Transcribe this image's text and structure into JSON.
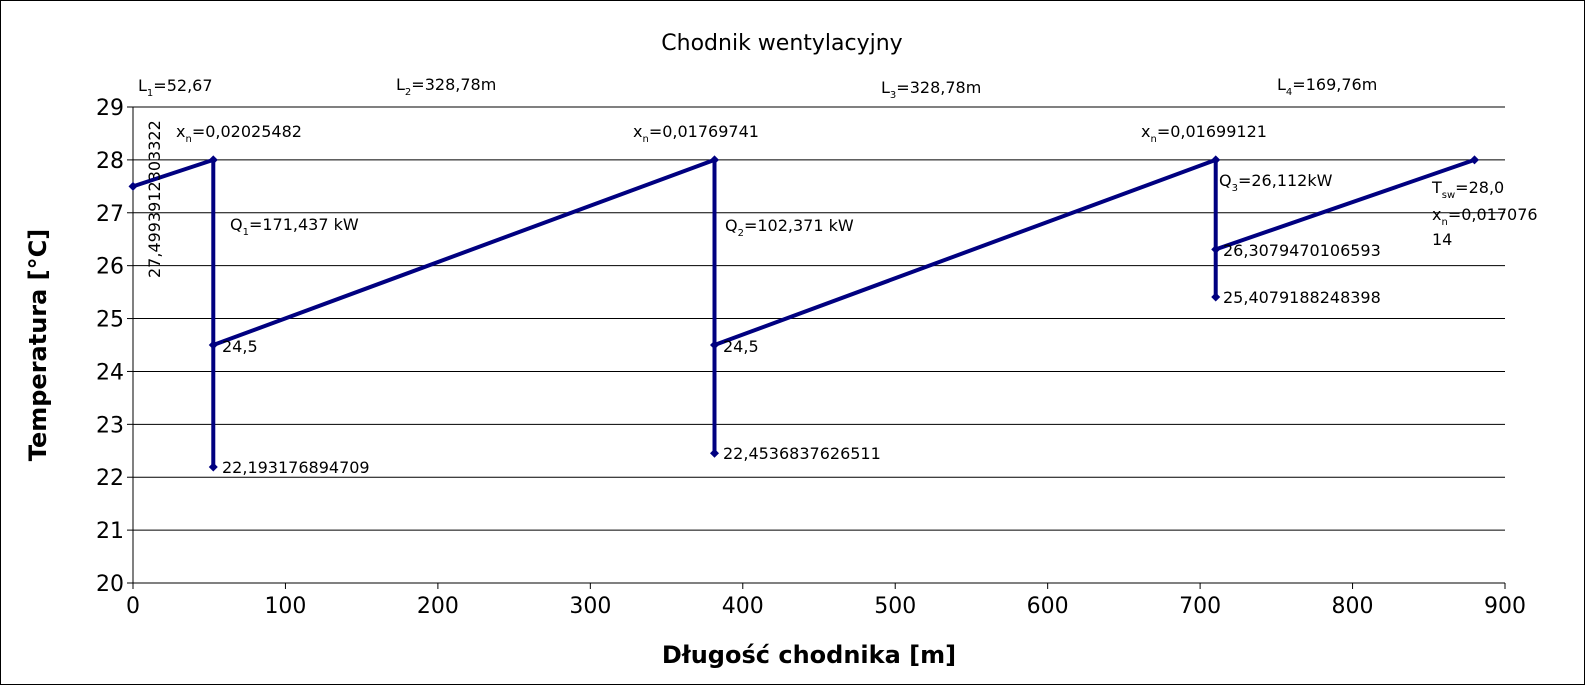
{
  "chart_data": {
    "type": "line",
    "title": "Chodnik wentylacyjny",
    "xlabel": "Długość chodnika [m]",
    "ylabel": "Temperatura [°C]",
    "xlim": [
      0,
      900
    ],
    "ylim": [
      20,
      29
    ],
    "x_ticks": [
      "0",
      "100",
      "200",
      "300",
      "400",
      "500",
      "600",
      "700",
      "800",
      "900"
    ],
    "y_ticks": [
      "20",
      "21",
      "22",
      "23",
      "24",
      "25",
      "26",
      "27",
      "28",
      "29"
    ],
    "grid": "horizontal",
    "color": "#000080",
    "points": [
      {
        "x": 0,
        "y": 27.4993912303322
      },
      {
        "x": 52.67,
        "y": 28.0
      },
      {
        "x": 52.67,
        "y": 22.193176894709
      },
      {
        "x": 52.67,
        "y": 24.5
      },
      {
        "x": 381.45,
        "y": 28.0
      },
      {
        "x": 381.45,
        "y": 22.4536837626511
      },
      {
        "x": 381.45,
        "y": 24.5
      },
      {
        "x": 710.23,
        "y": 28.0
      },
      {
        "x": 710.23,
        "y": 25.4079188248398
      },
      {
        "x": 710.23,
        "y": 26.3079470106593
      },
      {
        "x": 879.99,
        "y": 28.0
      }
    ],
    "annotations": {
      "L1": {
        "main": "L",
        "sub": "1",
        "rest": "=52,67"
      },
      "L2": {
        "main": "L",
        "sub": "2",
        "rest": "=328,78m"
      },
      "L3": {
        "main": "L",
        "sub": "3",
        "rest": "=328,78m"
      },
      "L4": {
        "main": "L",
        "sub": "4",
        "rest": "=169,76m"
      },
      "xn1": {
        "main": "x",
        "sub": "n",
        "rest": "=0,02025482"
      },
      "xn2": {
        "main": "x",
        "sub": "n",
        "rest": "=0,01769741"
      },
      "xn3": {
        "main": "x",
        "sub": "n",
        "rest": "=0,01699121"
      },
      "Q1": {
        "main": "Q",
        "sub": "1",
        "rest": "=171,437 kW"
      },
      "Q2": {
        "main": "Q",
        "sub": "2",
        "rest": "=102,371 kW"
      },
      "Q3": {
        "main": "Q",
        "sub": "3",
        "rest": "=26,112kW"
      },
      "Tsw": {
        "main": "T",
        "sub": "sw",
        "rest": "=28,0"
      },
      "xn4": {
        "main": "x",
        "sub": "n",
        "rest": "=0,017076"
      },
      "xn4_cont": "14",
      "start_value": "27,4993912303322",
      "v_24_5_a": "24,5",
      "v_24_5_b": "24,5",
      "v_min1": "22,193176894709",
      "v_min2": "22,4536837626511",
      "v_min3": "25,4079188248398",
      "v_after3": "26,3079470106593"
    }
  }
}
